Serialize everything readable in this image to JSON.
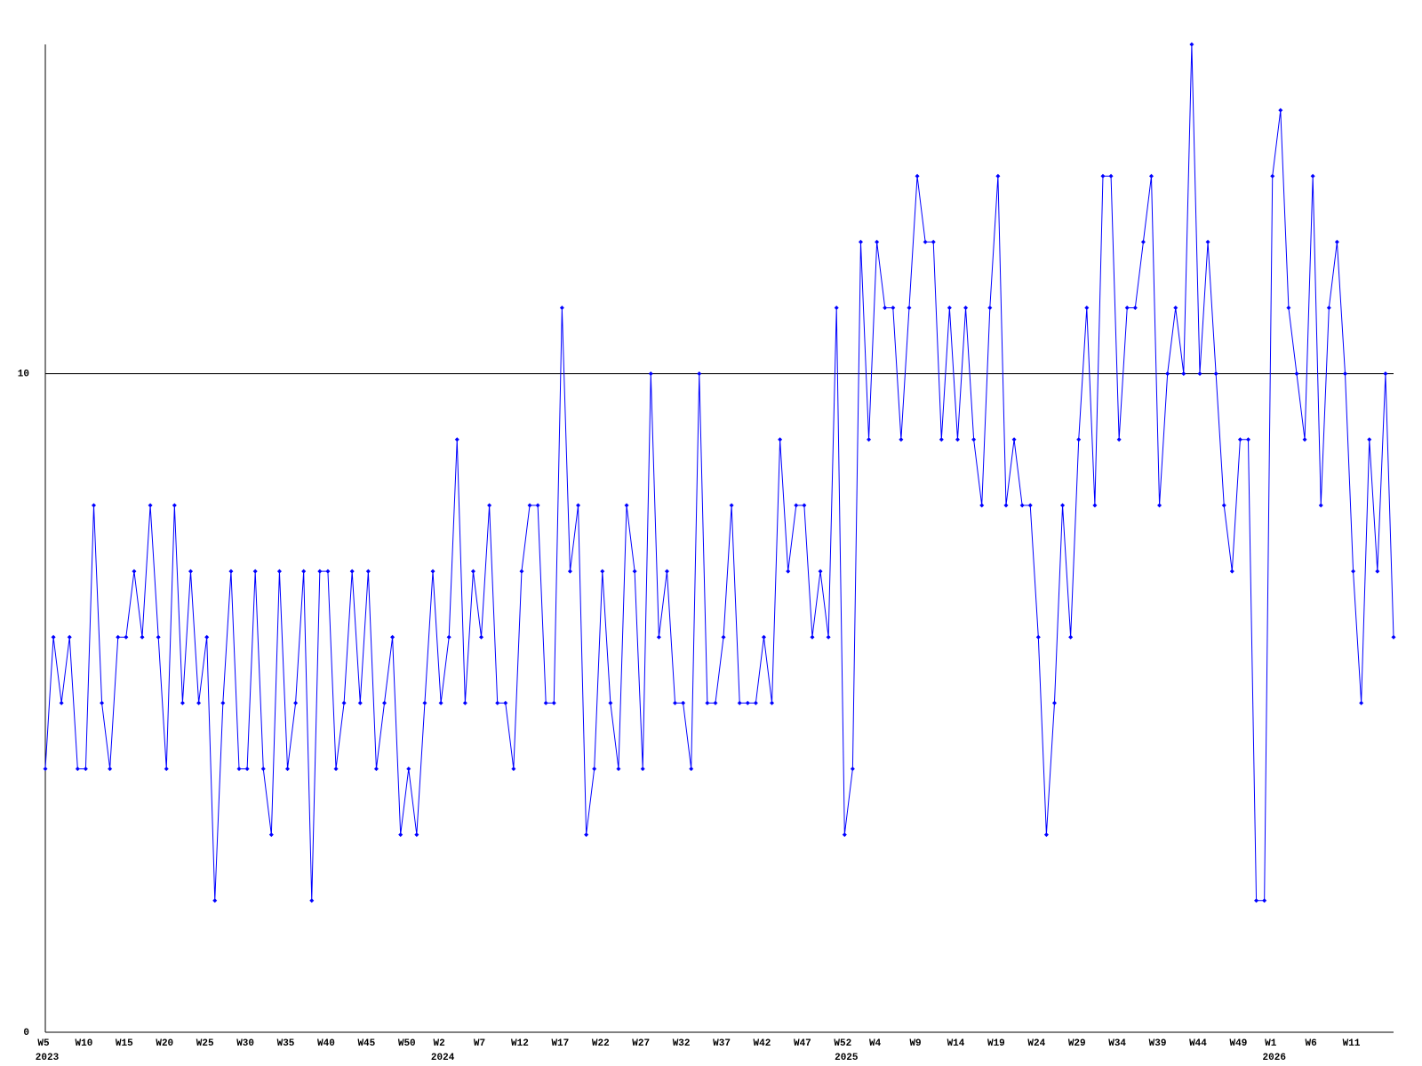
{
  "chart_data": {
    "type": "line",
    "categories": [
      "W5",
      null,
      null,
      null,
      null,
      "W10",
      null,
      null,
      null,
      null,
      "W15",
      null,
      null,
      null,
      null,
      "W20",
      null,
      null,
      null,
      null,
      "W25",
      null,
      null,
      null,
      null,
      "W30",
      null,
      null,
      null,
      null,
      "W35",
      null,
      null,
      null,
      null,
      "W40",
      null,
      null,
      null,
      null,
      "W45",
      null,
      null,
      null,
      null,
      "W50",
      null,
      null,
      null,
      "W2",
      null,
      null,
      null,
      null,
      "W7",
      null,
      null,
      null,
      null,
      "W12",
      null,
      null,
      null,
      null,
      "W17",
      null,
      null,
      null,
      null,
      "W22",
      null,
      null,
      null,
      null,
      "W27",
      null,
      null,
      null,
      null,
      "W32",
      null,
      null,
      null,
      null,
      "W37",
      null,
      null,
      null,
      null,
      "W42",
      null,
      null,
      null,
      null,
      "W47",
      null,
      null,
      null,
      null,
      "W52",
      null,
      null,
      null,
      "W4",
      null,
      null,
      null,
      null,
      "W9",
      null,
      null,
      null,
      null,
      "W14",
      null,
      null,
      null,
      null,
      "W19",
      null,
      null,
      null,
      null,
      "W24",
      null,
      null,
      null,
      null,
      "W29",
      null,
      null,
      null,
      null,
      "W34",
      null,
      null,
      null,
      null,
      "W39",
      null,
      null,
      null,
      null,
      "W44",
      null,
      null,
      null,
      null,
      "W49",
      null,
      null,
      null,
      "W1",
      null,
      null,
      null,
      null,
      "W6",
      null,
      null,
      null,
      null,
      "W11",
      null,
      null,
      null,
      null,
      null
    ],
    "year_labels": [
      "2023",
      null,
      null,
      null,
      null,
      null,
      null,
      null,
      null,
      null,
      null,
      null,
      null,
      null,
      null,
      null,
      null,
      null,
      null,
      null,
      null,
      null,
      null,
      null,
      null,
      null,
      null,
      null,
      null,
      null,
      null,
      null,
      null,
      null,
      null,
      null,
      null,
      null,
      null,
      null,
      null,
      null,
      null,
      null,
      null,
      null,
      null,
      null,
      null,
      "2024",
      null,
      null,
      null,
      null,
      null,
      null,
      null,
      null,
      null,
      null,
      null,
      null,
      null,
      null,
      null,
      null,
      null,
      null,
      null,
      null,
      null,
      null,
      null,
      null,
      null,
      null,
      null,
      null,
      null,
      null,
      null,
      null,
      null,
      null,
      null,
      null,
      null,
      null,
      null,
      null,
      null,
      null,
      null,
      null,
      null,
      null,
      null,
      null,
      null,
      "2025",
      null,
      null,
      null,
      null,
      null,
      null,
      null,
      null,
      null,
      null,
      null,
      null,
      null,
      null,
      null,
      null,
      null,
      null,
      null,
      null,
      null,
      null,
      null,
      null,
      null,
      null,
      null,
      null,
      null,
      null,
      null,
      null,
      null,
      null,
      null,
      null,
      null,
      null,
      null,
      null,
      null,
      null,
      null,
      null,
      null,
      null,
      null,
      null,
      null,
      null,
      null,
      null,
      "2026",
      null,
      null,
      null,
      null,
      null,
      null,
      null,
      null,
      null,
      null,
      null,
      null,
      null,
      null,
      null
    ],
    "values": [
      4,
      6,
      5,
      6,
      4,
      4,
      8,
      5,
      4,
      6,
      6,
      7,
      6,
      8,
      6,
      4,
      8,
      5,
      7,
      5,
      6,
      2,
      5,
      7,
      4,
      4,
      7,
      4,
      3,
      7,
      4,
      5,
      7,
      2,
      7,
      7,
      4,
      5,
      7,
      5,
      7,
      4,
      5,
      6,
      3,
      4,
      3,
      5,
      7,
      5,
      6,
      9,
      5,
      7,
      6,
      8,
      5,
      5,
      4,
      7,
      8,
      8,
      5,
      5,
      11,
      7,
      8,
      3,
      4,
      7,
      5,
      4,
      8,
      7,
      4,
      10,
      6,
      7,
      5,
      5,
      4,
      10,
      5,
      5,
      6,
      8,
      5,
      5,
      5,
      6,
      5,
      9,
      7,
      8,
      8,
      6,
      7,
      6,
      11,
      3,
      4,
      12,
      9,
      12,
      11,
      11,
      9,
      11,
      13,
      12,
      12,
      9,
      11,
      9,
      11,
      9,
      8,
      11,
      13,
      8,
      9,
      8,
      8,
      6,
      3,
      5,
      8,
      6,
      9,
      11,
      8,
      13,
      13,
      9,
      11,
      11,
      12,
      13,
      8,
      10,
      11,
      10,
      15,
      10,
      12,
      10,
      8,
      7,
      9,
      9,
      2,
      2,
      13,
      14,
      11,
      10,
      9,
      13,
      8,
      11,
      12,
      10,
      7,
      5,
      9,
      7,
      10,
      6
    ],
    "color": "#0000ff",
    "ylim": [
      0,
      15
    ],
    "yticks": [
      0,
      10
    ],
    "grid": true
  }
}
